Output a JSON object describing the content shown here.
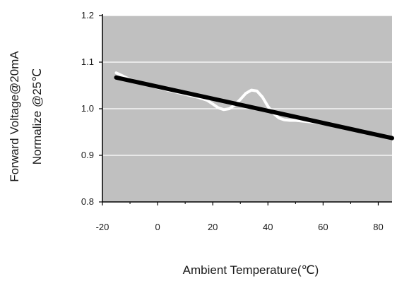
{
  "chart_data": {
    "type": "line",
    "title": "",
    "xlabel": "Ambient Temperature(℃)",
    "ylabel_lines": [
      "Forward Voltage@20mA",
      "Normalize @25℃"
    ],
    "xlim": [
      -20,
      85
    ],
    "ylim": [
      0.8,
      1.2
    ],
    "x_ticks": [
      -20,
      0,
      20,
      40,
      60,
      80
    ],
    "y_ticks": [
      0.8,
      0.9,
      1.0,
      1.1,
      1.2
    ],
    "x_tick_labels": [
      "-20",
      "0",
      "20",
      "40",
      "60",
      "80"
    ],
    "y_tick_labels": [
      "0.8",
      "0.9",
      "1.0",
      "1.1",
      "1.2"
    ],
    "grid": "horizontal",
    "legend": "none",
    "series": [
      {
        "color": "#000000",
        "x": [
          -15,
          85
        ],
        "y": [
          1.067,
          0.937
        ]
      },
      {
        "color": "#ffffff",
        "x": [
          -15,
          -10,
          -5,
          0,
          5,
          10,
          15,
          18,
          20,
          22,
          24,
          26,
          28,
          30,
          32,
          34,
          36,
          38,
          40,
          42,
          44,
          46,
          48,
          50,
          55,
          60
        ],
        "y": [
          1.077,
          1.063,
          1.054,
          1.045,
          1.038,
          1.031,
          1.024,
          1.018,
          1.01,
          1.002,
          0.998,
          1.0,
          1.008,
          1.02,
          1.033,
          1.04,
          1.038,
          1.025,
          1.005,
          0.99,
          0.98,
          0.976,
          0.975,
          0.975,
          0.972,
          0.968
        ]
      }
    ],
    "colors": {
      "plot_background": "#c0c0c0",
      "gridline": "#ffffff",
      "axis": "#000000"
    }
  }
}
